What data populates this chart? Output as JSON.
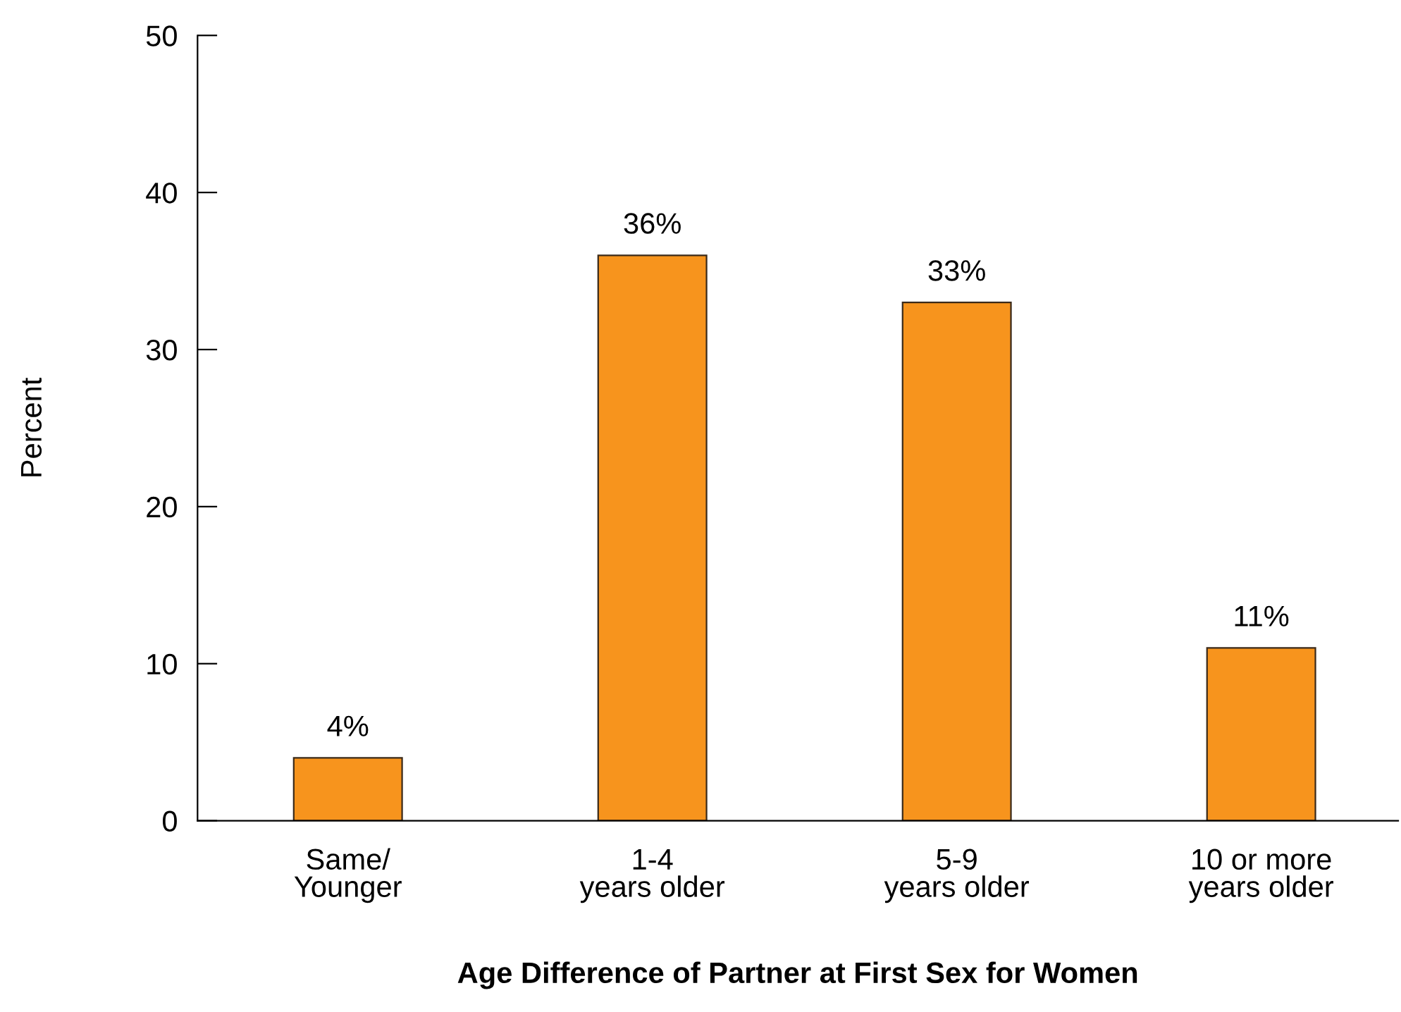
{
  "chart_data": {
    "type": "bar",
    "xlabel": "Age Difference of Partner at First Sex for Women",
    "ylabel": "Percent",
    "categories": [
      "Same/\nYounger",
      "1-4\nyears older",
      "5-9\nyears older",
      "10 or more\nyears older"
    ],
    "values": [
      4,
      36,
      33,
      11
    ],
    "value_labels": [
      "4%",
      "36%",
      "33%",
      "11%"
    ],
    "color": "#f7941d",
    "ylim": [
      0,
      50
    ],
    "yticks": [
      0,
      10,
      20,
      30,
      40,
      50
    ],
    "grid": false,
    "legend": false
  }
}
